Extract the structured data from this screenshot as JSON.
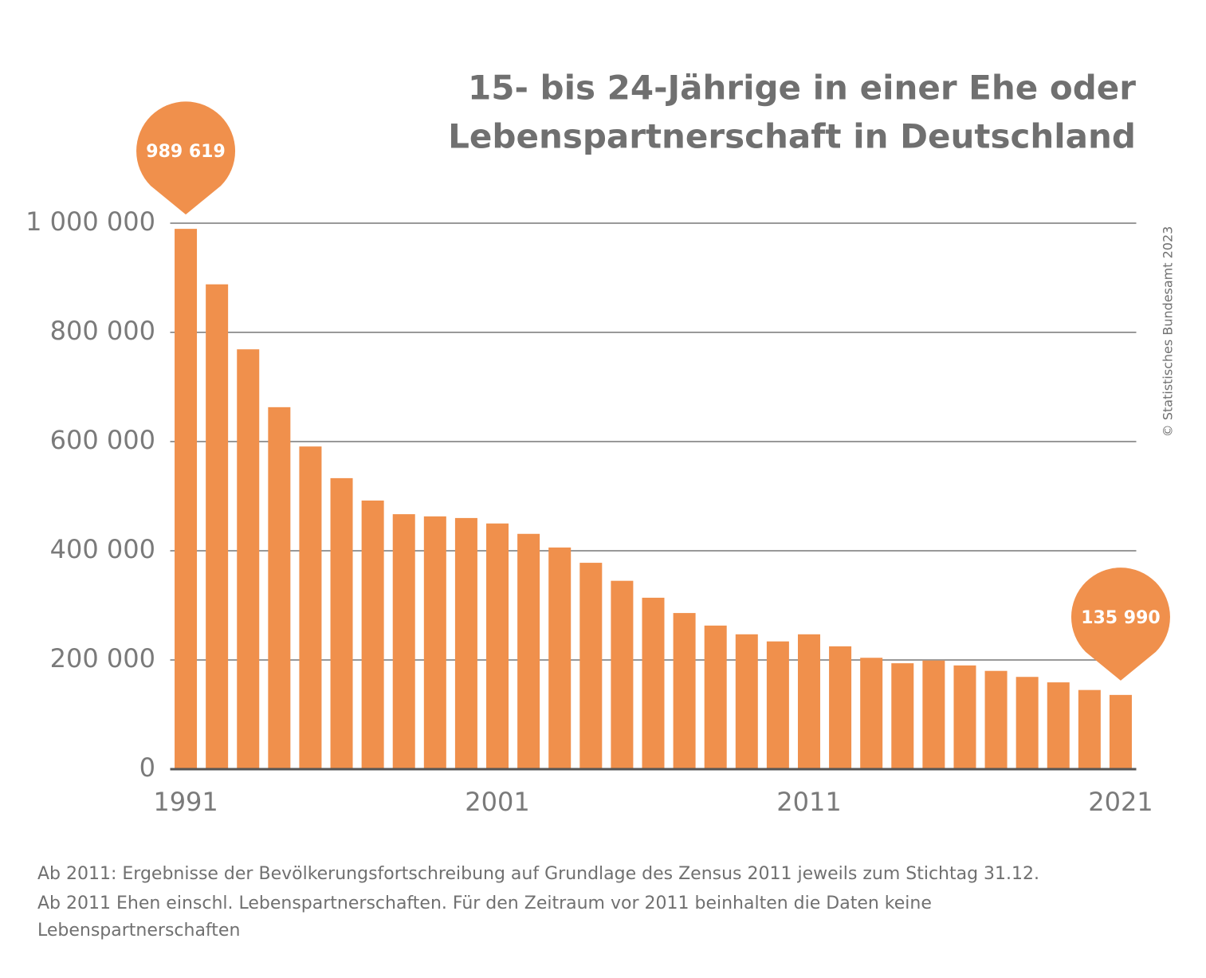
{
  "chart_data": {
    "type": "bar",
    "title": [
      "15- bis 24-Jährige in einer Ehe oder",
      "Lebenspartnerschaft in Deutschland"
    ],
    "source": "© Statistisches Bundesamt 2023",
    "footnote": [
      "Ab 2011: Ergebnisse der Bevölkerungsfortschreibung auf Grundlage des Zensus 2011 jeweils zum Stichtag 31.12.",
      "Ab 2011 Ehen einschl. Lebenspartnerschaften. Für den Zeitraum vor 2011 beinhalten die Daten keine",
      "Lebenspartnerschaften"
    ],
    "categories": [
      "1991",
      null,
      null,
      null,
      null,
      null,
      null,
      null,
      null,
      null,
      "2001",
      null,
      null,
      null,
      null,
      null,
      null,
      null,
      null,
      null,
      "2011",
      null,
      null,
      null,
      null,
      null,
      null,
      null,
      null,
      null,
      "2021"
    ],
    "values": [
      989619,
      888000,
      769000,
      663000,
      591000,
      533000,
      492000,
      467000,
      463000,
      460000,
      450000,
      431000,
      406000,
      378000,
      345000,
      314000,
      286000,
      263000,
      247000,
      234000,
      247000,
      225000,
      204000,
      194000,
      199000,
      190000,
      180000,
      169000,
      159000,
      145000,
      135990
    ],
    "value_labels": [
      "989 619",
      null,
      null,
      null,
      null,
      null,
      null,
      null,
      null,
      null,
      null,
      null,
      null,
      null,
      null,
      null,
      null,
      null,
      null,
      null,
      null,
      null,
      null,
      null,
      null,
      null,
      null,
      null,
      null,
      null,
      "135 990"
    ],
    "color": "#f0904c",
    "ylim": [
      0,
      1000000
    ],
    "yticks": [
      0,
      {
        "value": 200000,
        "label": "200 000"
      },
      {
        "value": 400000,
        "label": "400 000"
      },
      {
        "value": 600000,
        "label": "600 000"
      },
      {
        "value": 800000,
        "label": "800 000"
      },
      {
        "value": 1000000,
        "label": "1 000 000"
      }
    ],
    "grid": true
  }
}
